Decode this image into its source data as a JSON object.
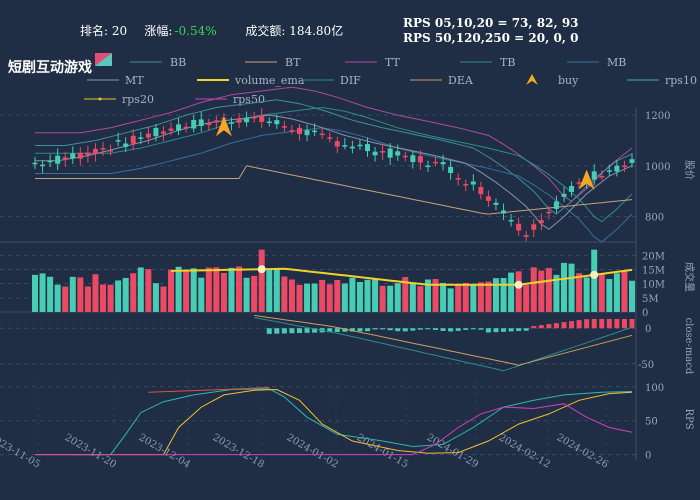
{
  "header": {
    "rank_label": "排名: 20",
    "change_label": "涨幅:",
    "change_value": "-0.54%",
    "turnover_label": "成交额: 184.80亿",
    "rps_line1": "RPS 05,10,20 = 73, 82, 93",
    "rps_line2": "RPS 50,120,250 = 20, 0, 0",
    "stock_name": "短剧互动游戏"
  },
  "legend": {
    "row1": [
      "BB",
      "BT",
      "TT",
      "TB",
      "MB"
    ],
    "row2": [
      "MT",
      "volume_ema",
      "DIF",
      "DEA",
      "buy",
      "rps10"
    ],
    "row3": [
      "rps20",
      "rps50"
    ]
  },
  "colors": {
    "up": "#ec4a64",
    "down": "#46cdb4",
    "background": "#1f2d45",
    "volume_ema": "#f0d22a",
    "buy": "#f5a623"
  },
  "chart_data": [
    {
      "type": "candlestick",
      "panel": "price",
      "ylabel": "股价",
      "yticks": [
        800,
        1000,
        1200
      ],
      "ylim": [
        700,
        1220
      ],
      "x_ticks": [
        "2023-11-05",
        "2023-11-20",
        "2023-12-04",
        "2023-12-18",
        "2024-01-02",
        "2024-01-15",
        "2024-01-29",
        "2024-02-12",
        "2024-02-26"
      ],
      "buy_signals": [
        {
          "date": "2023-12-07",
          "label": "buy"
        },
        {
          "date": "2024-02-21",
          "label": "buy"
        }
      ]
    },
    {
      "type": "bar",
      "panel": "volume",
      "ylabel": "成交量",
      "yticks": [
        "0",
        "5M",
        "10M",
        "15M",
        "20M"
      ],
      "ylim": [
        0,
        24
      ],
      "series": [
        {
          "name": "volume_ema"
        }
      ]
    },
    {
      "type": "bar",
      "panel": "macd",
      "ylabel": "close-macd",
      "yticks": [
        0,
        -50
      ],
      "ylim": [
        -70,
        20
      ],
      "series": [
        {
          "name": "DIF"
        },
        {
          "name": "DEA"
        }
      ]
    },
    {
      "type": "line",
      "panel": "rps",
      "ylabel": "RPS",
      "yticks": [
        0,
        50,
        100
      ],
      "ylim": [
        -5,
        110
      ],
      "series": [
        {
          "name": "rps10"
        },
        {
          "name": "rps20"
        },
        {
          "name": "rps50"
        }
      ]
    }
  ]
}
